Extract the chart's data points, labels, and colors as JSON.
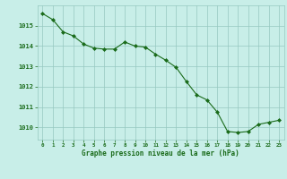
{
  "x": [
    0,
    1,
    2,
    3,
    4,
    5,
    6,
    7,
    8,
    9,
    10,
    11,
    12,
    13,
    14,
    15,
    16,
    17,
    18,
    19,
    20,
    21,
    22,
    23
  ],
  "y": [
    1015.6,
    1015.3,
    1014.7,
    1014.5,
    1014.1,
    1013.9,
    1013.85,
    1013.85,
    1014.2,
    1014.0,
    1013.95,
    1013.6,
    1013.3,
    1012.95,
    1012.25,
    1011.6,
    1011.35,
    1010.75,
    1009.8,
    1009.75,
    1009.8,
    1010.15,
    1010.25,
    1010.35
  ],
  "line_color": "#1a6b1a",
  "marker_color": "#1a6b1a",
  "bg_color": "#c8eee8",
  "grid_color": "#96c8c0",
  "xlabel": "Graphe pression niveau de la mer (hPa)",
  "xlabel_color": "#1a6b1a",
  "tick_color": "#1a6b1a",
  "ytick_labels": [
    1010,
    1011,
    1012,
    1013,
    1014,
    1015
  ],
  "ylim": [
    1009.4,
    1016.0
  ],
  "xlim": [
    -0.5,
    23.5
  ],
  "xtick_labels": [
    "0",
    "1",
    "2",
    "3",
    "4",
    "5",
    "6",
    "7",
    "8",
    "9",
    "10",
    "11",
    "12",
    "13",
    "14",
    "15",
    "16",
    "17",
    "18",
    "19",
    "20",
    "21",
    "22",
    "23"
  ]
}
